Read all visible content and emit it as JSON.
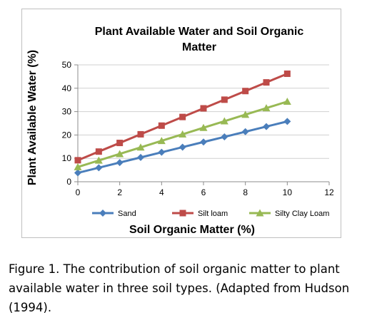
{
  "chart_data": {
    "type": "line",
    "title_lines": [
      "Plant Available Water and Soil Organic",
      "Matter"
    ],
    "xlabel": "Soil Organic Matter (%)",
    "ylabel": "Plant Available Water (%)",
    "xlim": [
      0,
      12
    ],
    "ylim": [
      0,
      50
    ],
    "xticks": [
      0,
      2,
      4,
      6,
      8,
      10,
      12
    ],
    "yticks": [
      0,
      10,
      20,
      30,
      40,
      50
    ],
    "grid": "horizontal",
    "legend_position": "bottom",
    "x": [
      0,
      1,
      2,
      3,
      4,
      5,
      6,
      7,
      8,
      9,
      10
    ],
    "series": [
      {
        "name": "Sand",
        "color": "#4a7ebb",
        "marker": "diamond",
        "values": [
          3.8,
          6.0,
          8.2,
          10.4,
          12.6,
          14.8,
          17.0,
          19.2,
          21.4,
          23.6,
          25.8
        ]
      },
      {
        "name": "Silt loam",
        "color": "#be4b48",
        "marker": "square",
        "values": [
          9.2,
          12.9,
          16.6,
          20.3,
          24.0,
          27.7,
          31.4,
          35.1,
          38.8,
          42.5,
          46.2
        ]
      },
      {
        "name": "Silty Clay Loam",
        "color": "#98b954",
        "marker": "triangle",
        "values": [
          6.3,
          9.1,
          11.9,
          14.7,
          17.5,
          20.3,
          23.1,
          25.9,
          28.7,
          31.5,
          34.3
        ]
      }
    ]
  },
  "caption": "Figure 1. The contribution of soil organic matter to plant available water in three soil types. (Adapted from Hudson (1994)."
}
